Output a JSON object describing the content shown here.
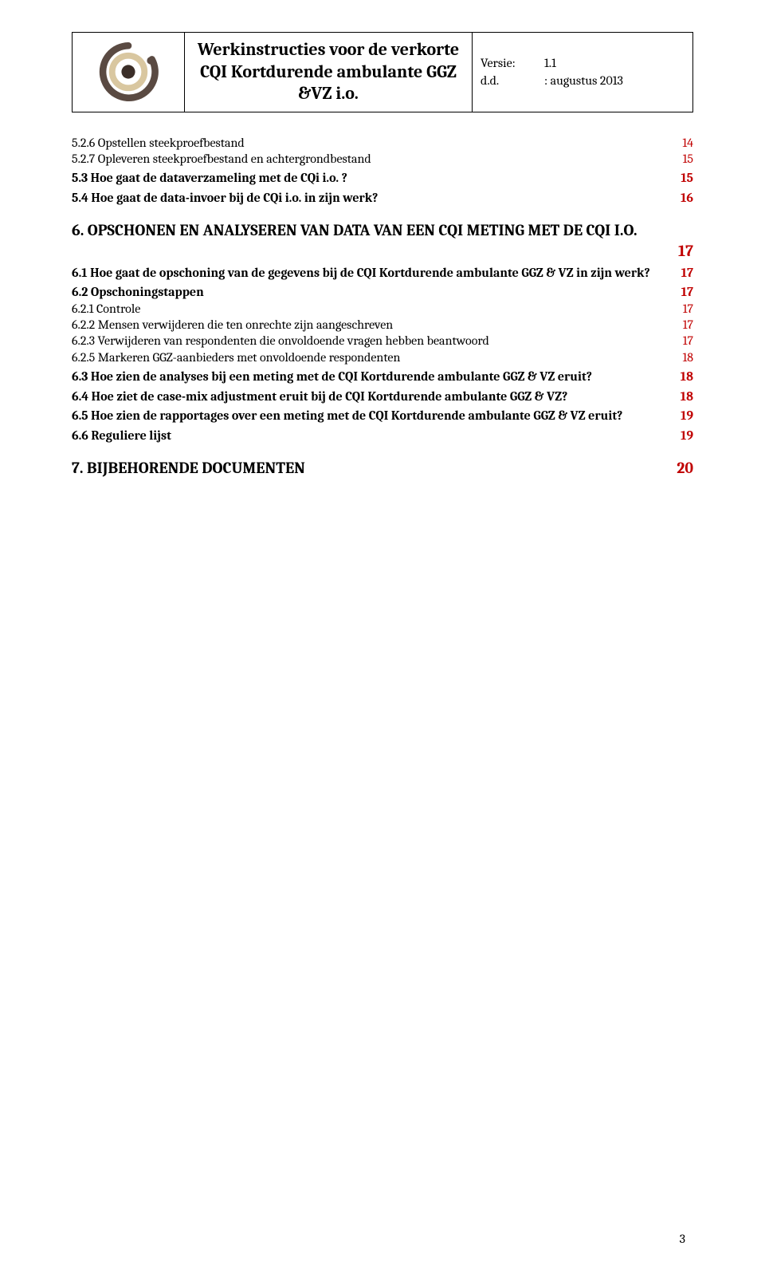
{
  "header": {
    "title": "Werkinstructies voor de verkorte CQI Kortdurende ambulante GGZ &VZ i.o.",
    "version_label": "Versie:",
    "version_value": "1.1",
    "date_label": "d.d.",
    "date_value": ": augustus 2013"
  },
  "logo": {
    "outer_ring": "#5a4a42",
    "mid_ring": "#d9c7a0",
    "inner_dot": "#3b2e28",
    "bg": "#ffffff"
  },
  "colors": {
    "page_number": "#c00000",
    "text": "#000000"
  },
  "toc": [
    {
      "label": "5.2.6 Opstellen steekproefbestand",
      "page": "14",
      "bold": false,
      "size": "normal"
    },
    {
      "label": "5.2.7 Opleveren steekproefbestand en achtergrondbestand",
      "page": "15",
      "bold": false,
      "size": "normal"
    },
    {
      "gap": "small"
    },
    {
      "label": "5.3 Hoe gaat de dataverzameling met de CQi i.o. ?",
      "page": "15",
      "bold": true,
      "size": "normal"
    },
    {
      "gap": "small"
    },
    {
      "label": "5.4 Hoe gaat de data-invoer bij de CQi i.o. in zijn werk?",
      "page": "16",
      "bold": true,
      "size": "normal"
    },
    {
      "gap": "section"
    },
    {
      "label": "6. OPSCHONEN EN ANALYSEREN VAN DATA VAN EEN CQI METING MET DE CQI I.O.",
      "page": "17",
      "bold": true,
      "size": "large",
      "wrap": true
    },
    {
      "gap": "small"
    },
    {
      "label": "6.1 Hoe gaat de opschoning van de gegevens bij de CQI Kortdurende ambulante GGZ & VZ in zijn werk?",
      "page": "17",
      "bold": true,
      "size": "normal"
    },
    {
      "gap": "small"
    },
    {
      "label": "6.2 Opschoningstappen",
      "page": "17",
      "bold": true,
      "size": "normal"
    },
    {
      "label": "6.2.1 Controle",
      "page": "17",
      "bold": false,
      "size": "normal"
    },
    {
      "label": "6.2.2 Mensen verwijderen die ten onrechte zijn aangeschreven",
      "page": "17",
      "bold": false,
      "size": "normal"
    },
    {
      "label": "6.2.3 Verwijderen van respondenten die onvoldoende vragen hebben beantwoord",
      "page": "17",
      "bold": false,
      "size": "normal"
    },
    {
      "label": "6.2.5 Markeren GGZ-aanbieders met onvoldoende respondenten",
      "page": "18",
      "bold": false,
      "size": "normal"
    },
    {
      "gap": "small"
    },
    {
      "label": "6.3 Hoe zien de analyses bij een meting met de CQI Kortdurende ambulante GGZ & VZ eruit?",
      "page": "18",
      "bold": true,
      "size": "normal"
    },
    {
      "gap": "small"
    },
    {
      "label": "6.4 Hoe ziet de case-mix adjustment eruit bij de CQI Kortdurende ambulante GGZ & VZ?",
      "page": "18",
      "bold": true,
      "size": "normal"
    },
    {
      "gap": "small"
    },
    {
      "label": "6.5 Hoe zien de rapportages over een meting met de CQI Kortdurende ambulante GGZ & VZ eruit?",
      "page": "19",
      "bold": true,
      "size": "normal"
    },
    {
      "gap": "small"
    },
    {
      "label": "6.6 Reguliere lijst",
      "page": "19",
      "bold": true,
      "size": "normal"
    },
    {
      "gap": "section"
    },
    {
      "label": "7. BIJBEHORENDE DOCUMENTEN",
      "page": "20",
      "bold": true,
      "size": "large"
    }
  ],
  "page_number": "3"
}
